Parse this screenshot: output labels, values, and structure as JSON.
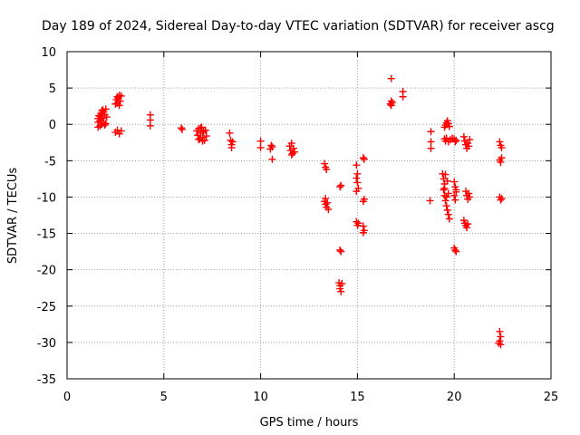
{
  "chart_data": {
    "type": "scatter",
    "title": "Day 189 of 2024, Sidereal Day-to-day VTEC variation (SDTVAR) for receiver ascg",
    "xlabel": "GPS time / hours",
    "ylabel": "SDTVAR / TECUs",
    "xlim": [
      0,
      25
    ],
    "ylim": [
      -35,
      10
    ],
    "xticks": [
      0,
      5,
      10,
      15,
      20,
      25
    ],
    "yticks": [
      10,
      5,
      0,
      -5,
      -10,
      -15,
      -20,
      -25,
      -30,
      -35
    ],
    "grid": true,
    "marker": "+",
    "marker_color": "#ff0000",
    "series": [
      {
        "name": "SDTVAR",
        "points": [
          [
            1.6,
            -0.4
          ],
          [
            1.6,
            0.3
          ],
          [
            1.6,
            0.8
          ],
          [
            1.65,
            1.2
          ],
          [
            1.7,
            -0.2
          ],
          [
            1.7,
            0.5
          ],
          [
            1.75,
            1.5
          ],
          [
            1.8,
            1.9
          ],
          [
            1.8,
            0.0
          ],
          [
            1.85,
            0.9
          ],
          [
            1.9,
            1.7
          ],
          [
            1.9,
            0.2
          ],
          [
            1.95,
            1.3
          ],
          [
            2.0,
            2.1
          ],
          [
            2.0,
            0.1
          ],
          [
            2.05,
            1.0
          ],
          [
            1.7,
            1.1
          ],
          [
            1.75,
            0.7
          ],
          [
            1.85,
            2.0
          ],
          [
            1.95,
            -0.1
          ],
          [
            2.5,
            2.8
          ],
          [
            2.55,
            3.4
          ],
          [
            2.6,
            3.8
          ],
          [
            2.6,
            2.9
          ],
          [
            2.65,
            3.6
          ],
          [
            2.7,
            4.0
          ],
          [
            2.7,
            2.6
          ],
          [
            2.75,
            3.2
          ],
          [
            2.8,
            3.9
          ],
          [
            2.5,
            -1.1
          ],
          [
            2.6,
            -0.8
          ],
          [
            2.7,
            -1.3
          ],
          [
            2.8,
            -0.9
          ],
          [
            4.3,
            1.3
          ],
          [
            4.3,
            0.6
          ],
          [
            4.3,
            -0.2
          ],
          [
            5.9,
            -0.5
          ],
          [
            5.95,
            -0.7
          ],
          [
            6.7,
            -0.9
          ],
          [
            6.75,
            -1.5
          ],
          [
            6.8,
            -0.6
          ],
          [
            6.85,
            -2.0
          ],
          [
            6.9,
            -1.2
          ],
          [
            6.95,
            -0.4
          ],
          [
            7.0,
            -1.8
          ],
          [
            7.05,
            -1.0
          ],
          [
            7.1,
            -2.2
          ],
          [
            7.15,
            -0.8
          ],
          [
            7.2,
            -1.6
          ],
          [
            6.8,
            -2.1
          ],
          [
            7.0,
            -2.3
          ],
          [
            6.9,
            -0.5
          ],
          [
            8.4,
            -1.2
          ],
          [
            8.45,
            -2.2
          ],
          [
            8.5,
            -2.8
          ],
          [
            8.55,
            -2.4
          ],
          [
            8.5,
            -3.2
          ],
          [
            10.0,
            -2.3
          ],
          [
            10.0,
            -3.2
          ],
          [
            10.5,
            -3.4
          ],
          [
            10.55,
            -2.9
          ],
          [
            10.6,
            -4.8
          ],
          [
            10.6,
            -3.1
          ],
          [
            11.5,
            -3.0
          ],
          [
            11.55,
            -3.6
          ],
          [
            11.6,
            -2.6
          ],
          [
            11.65,
            -4.0
          ],
          [
            11.7,
            -3.3
          ],
          [
            11.75,
            -3.8
          ],
          [
            11.6,
            -4.2
          ],
          [
            13.3,
            -5.4
          ],
          [
            13.35,
            -5.9
          ],
          [
            13.4,
            -6.2
          ],
          [
            13.3,
            -10.6
          ],
          [
            13.35,
            -11.0
          ],
          [
            13.4,
            -11.4
          ],
          [
            13.45,
            -10.8
          ],
          [
            13.5,
            -11.7
          ],
          [
            13.35,
            -10.2
          ],
          [
            14.1,
            -8.6
          ],
          [
            14.15,
            -8.4
          ],
          [
            14.1,
            -17.3
          ],
          [
            14.15,
            -17.5
          ],
          [
            14.05,
            -21.8
          ],
          [
            14.1,
            -22.6
          ],
          [
            14.15,
            -23.0
          ],
          [
            14.1,
            -22.2
          ],
          [
            14.2,
            -21.9
          ],
          [
            14.95,
            -5.6
          ],
          [
            15.0,
            -6.8
          ],
          [
            14.95,
            -7.4
          ],
          [
            15.0,
            -8.0
          ],
          [
            15.05,
            -8.8
          ],
          [
            14.95,
            -9.2
          ],
          [
            14.95,
            -13.4
          ],
          [
            15.0,
            -13.9
          ],
          [
            15.05,
            -13.6
          ],
          [
            15.3,
            -4.6
          ],
          [
            15.35,
            -4.8
          ],
          [
            15.35,
            -10.3
          ],
          [
            15.3,
            -10.6
          ],
          [
            15.3,
            -14.0
          ],
          [
            15.35,
            -14.6
          ],
          [
            15.3,
            -14.9
          ],
          [
            16.75,
            6.3
          ],
          [
            16.75,
            3.2
          ],
          [
            16.7,
            2.8
          ],
          [
            16.8,
            3.0
          ],
          [
            16.75,
            2.6
          ],
          [
            17.35,
            4.5
          ],
          [
            17.35,
            3.8
          ],
          [
            18.8,
            -1.0
          ],
          [
            18.8,
            -2.4
          ],
          [
            18.8,
            -3.3
          ],
          [
            18.75,
            -10.5
          ],
          [
            19.4,
            -6.8
          ],
          [
            19.45,
            -7.5
          ],
          [
            19.5,
            -8.2
          ],
          [
            19.45,
            -9.0
          ],
          [
            19.5,
            -9.8
          ],
          [
            19.55,
            -10.5
          ],
          [
            19.6,
            -11.2
          ],
          [
            19.65,
            -11.8
          ],
          [
            19.7,
            -12.4
          ],
          [
            19.75,
            -13.0
          ],
          [
            19.5,
            -8.8
          ],
          [
            19.6,
            -10.0
          ],
          [
            19.65,
            -7.8
          ],
          [
            19.55,
            -6.9
          ],
          [
            19.7,
            -9.5
          ],
          [
            19.5,
            -0.4
          ],
          [
            19.55,
            -0.1
          ],
          [
            19.6,
            0.2
          ],
          [
            19.65,
            0.5
          ],
          [
            19.7,
            0.1
          ],
          [
            19.75,
            -0.3
          ],
          [
            19.5,
            -2.0
          ],
          [
            19.55,
            -2.3
          ],
          [
            19.6,
            -1.9
          ],
          [
            19.7,
            -2.4
          ],
          [
            19.8,
            -2.1
          ],
          [
            19.9,
            -1.9
          ],
          [
            20.0,
            -2.0
          ],
          [
            20.05,
            -2.4
          ],
          [
            20.1,
            -2.2
          ],
          [
            20.0,
            -7.9
          ],
          [
            20.05,
            -8.6
          ],
          [
            20.1,
            -9.3
          ],
          [
            20.0,
            -9.8
          ],
          [
            20.05,
            -10.4
          ],
          [
            20.1,
            -9.0
          ],
          [
            20.0,
            -17.0
          ],
          [
            20.05,
            -17.3
          ],
          [
            20.1,
            -17.5
          ],
          [
            20.5,
            -1.7
          ],
          [
            20.55,
            -2.3
          ],
          [
            20.6,
            -2.8
          ],
          [
            20.65,
            -3.3
          ],
          [
            20.7,
            -2.6
          ],
          [
            20.75,
            -3.0
          ],
          [
            20.8,
            -2.1
          ],
          [
            20.6,
            -9.2
          ],
          [
            20.65,
            -9.8
          ],
          [
            20.7,
            -10.3
          ],
          [
            20.75,
            -9.5
          ],
          [
            20.8,
            -10.0
          ],
          [
            20.5,
            -13.2
          ],
          [
            20.55,
            -13.6
          ],
          [
            20.6,
            -13.9
          ],
          [
            20.65,
            -14.2
          ],
          [
            20.7,
            -13.7
          ],
          [
            22.35,
            -2.4
          ],
          [
            22.4,
            -2.9
          ],
          [
            22.45,
            -3.2
          ],
          [
            22.35,
            -4.9
          ],
          [
            22.4,
            -5.2
          ],
          [
            22.45,
            -4.6
          ],
          [
            22.35,
            -10.0
          ],
          [
            22.4,
            -10.4
          ],
          [
            22.45,
            -10.2
          ],
          [
            22.35,
            -28.5
          ],
          [
            22.4,
            -29.2
          ],
          [
            22.35,
            -29.8
          ],
          [
            22.4,
            -30.3
          ],
          [
            22.3,
            -30.1
          ]
        ]
      }
    ]
  }
}
